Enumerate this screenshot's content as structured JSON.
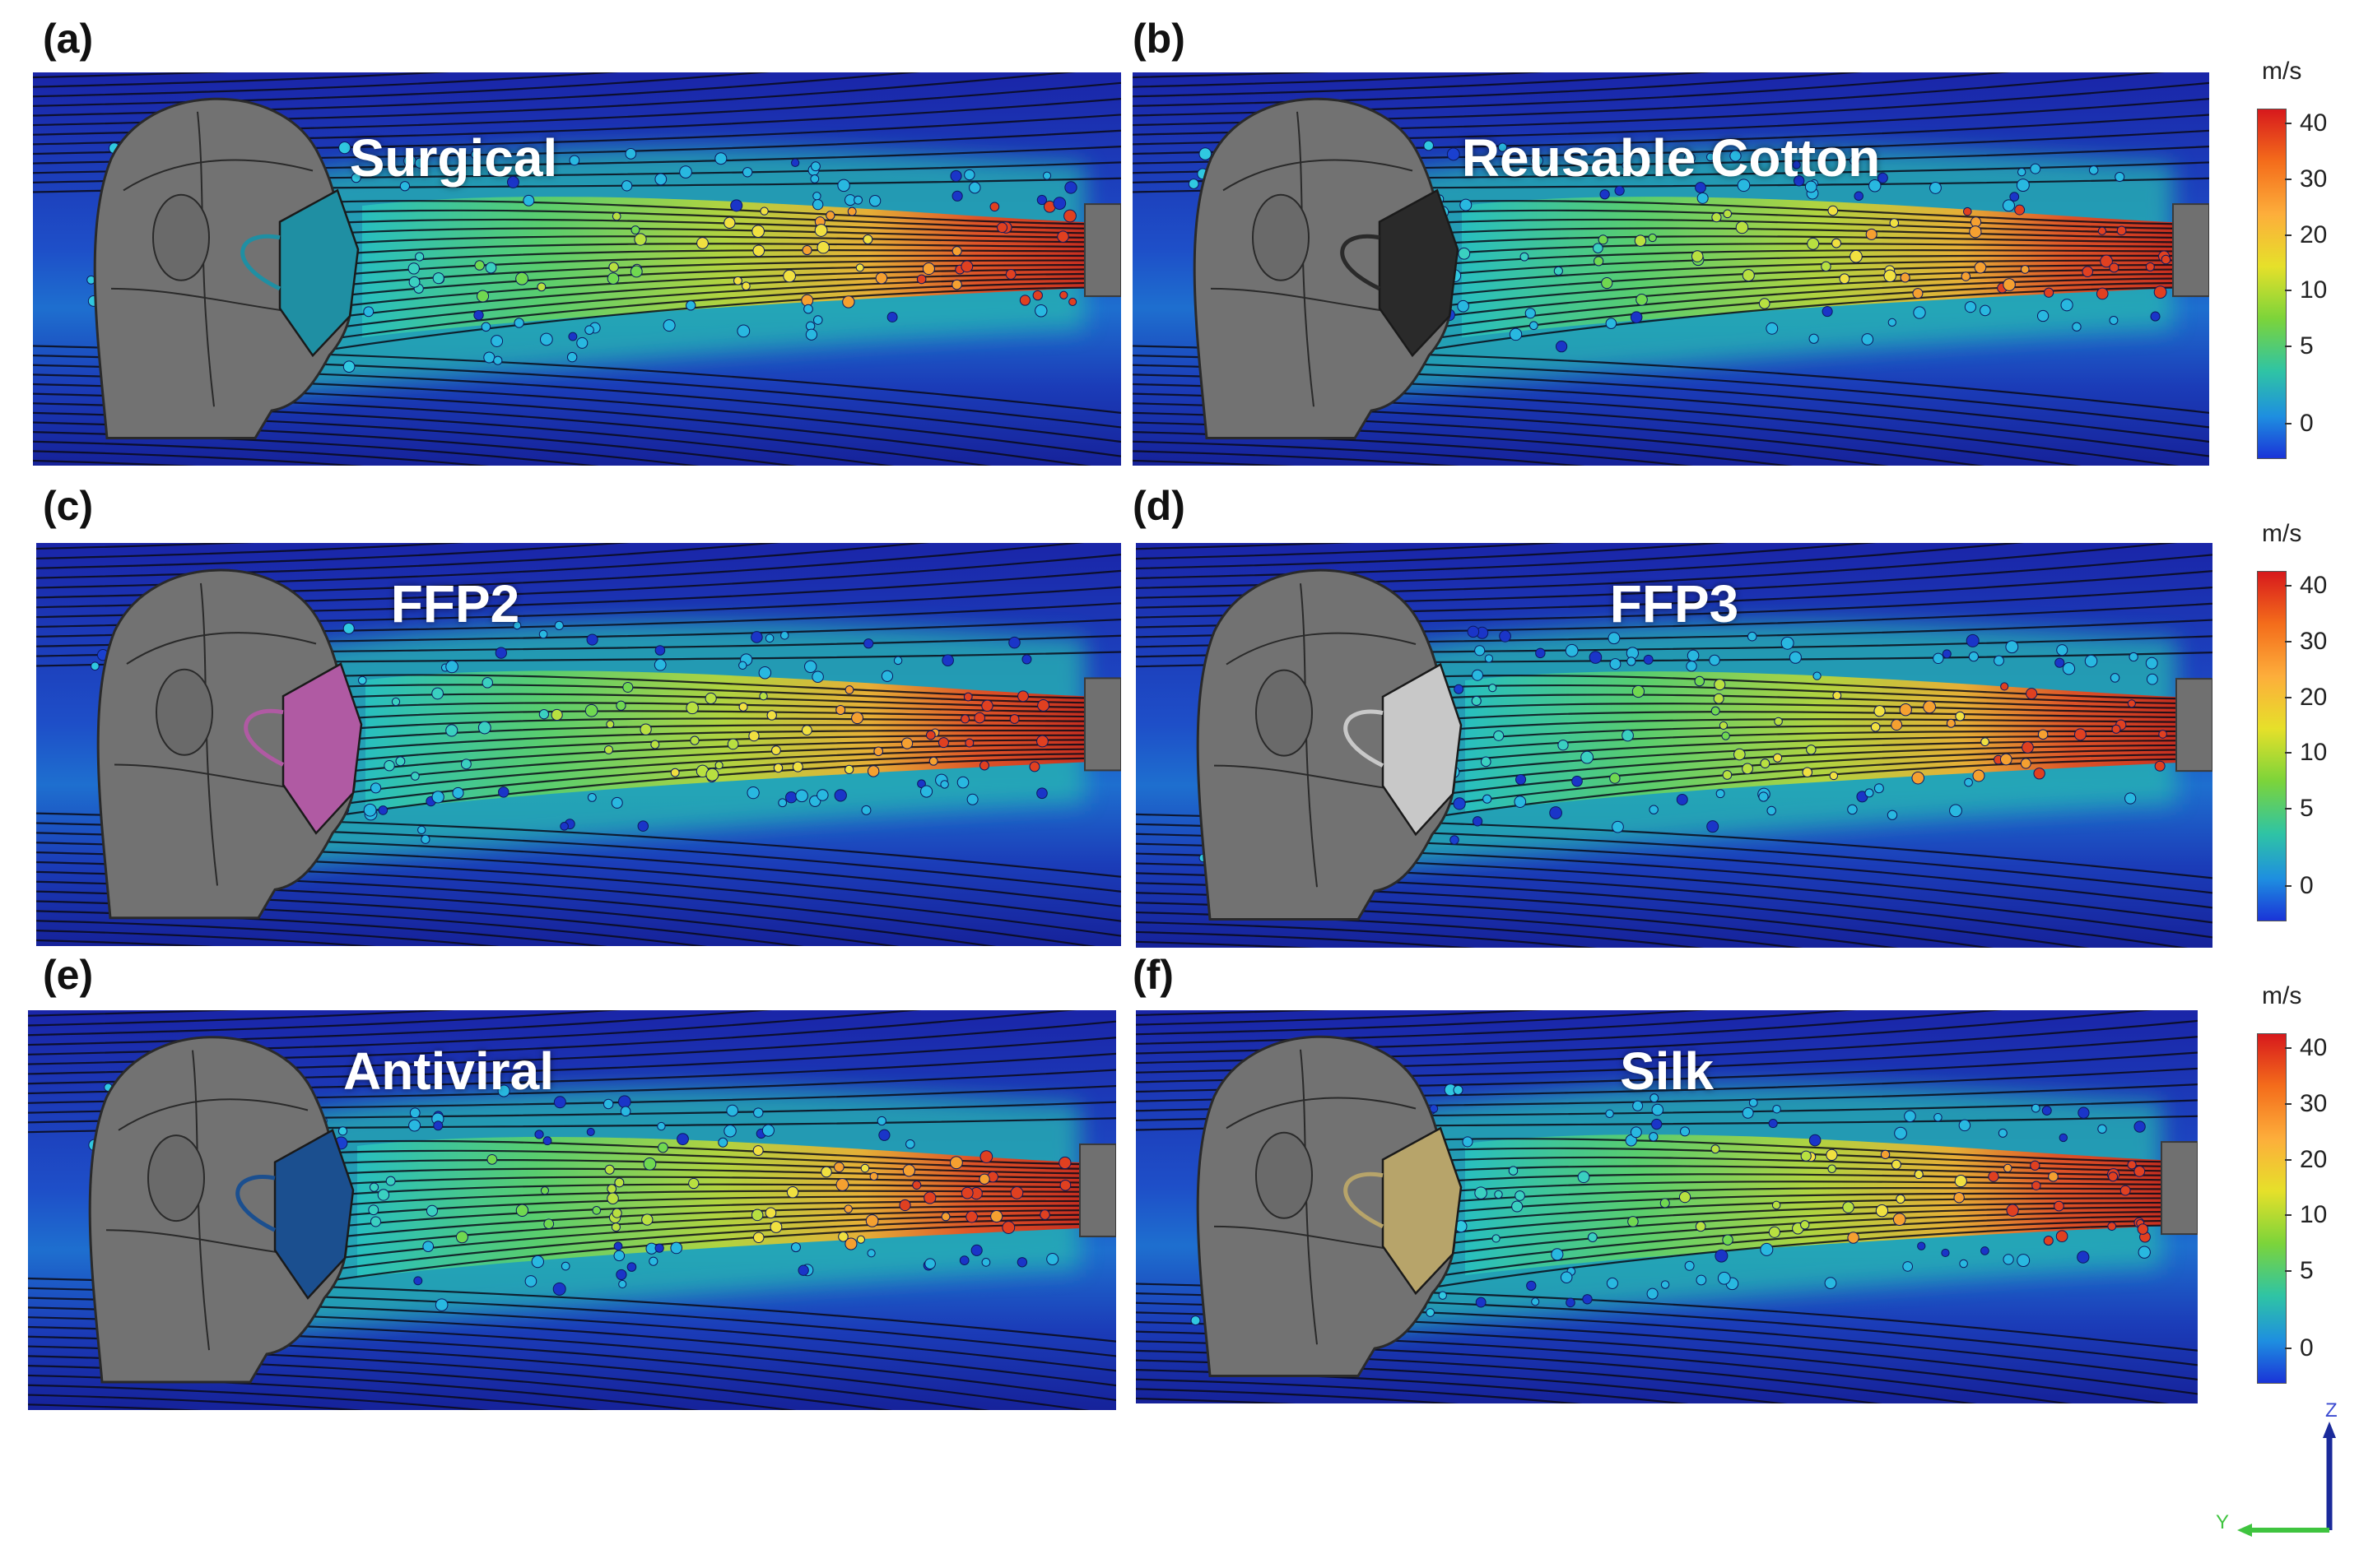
{
  "panels": [
    {
      "label": "(a)",
      "title": "Surgical",
      "mask_color": "#1f8fa3"
    },
    {
      "label": "(b)",
      "title": "Reusable Cotton",
      "mask_color": "#2a2a2a"
    },
    {
      "label": "(c)",
      "title": "FFP2",
      "mask_color": "#b05aa3"
    },
    {
      "label": "(d)",
      "title": "FFP3",
      "mask_color": "#c8c8c8"
    },
    {
      "label": "(e)",
      "title": "Antiviral",
      "mask_color": "#1b4f8f"
    },
    {
      "label": "(f)",
      "title": "Silk",
      "mask_color": "#b7a46a"
    }
  ],
  "colorbar": {
    "unit": "m/s",
    "ticks": [
      "40",
      "30",
      "20",
      "10",
      "5",
      "0"
    ]
  },
  "axes": {
    "z": "Z",
    "y": "Y"
  },
  "colors": {
    "bg_flow": "#1a2fb8",
    "jet_core": "#d92a1a",
    "head": "#6f6f6f"
  }
}
